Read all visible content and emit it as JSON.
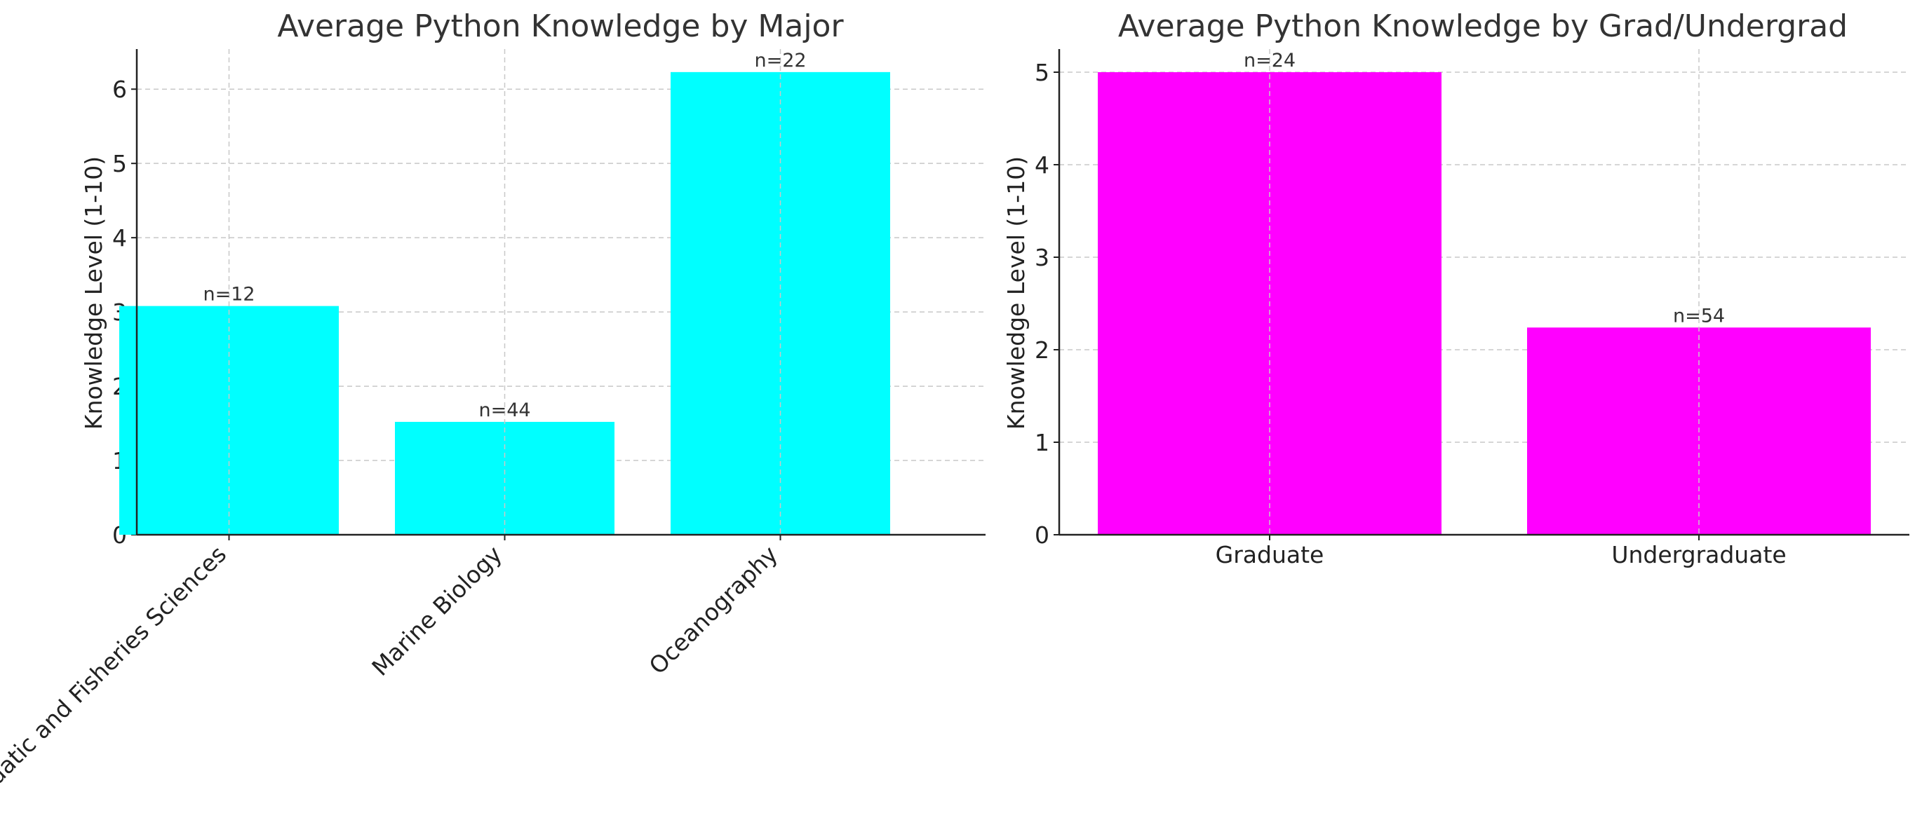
{
  "colors": {
    "major_bars": "#00ffff",
    "level_bars": "#ff00ff"
  },
  "chart_data": [
    {
      "type": "bar",
      "title": "Average Python Knowledge by Major",
      "xlabel": "",
      "ylabel": "Knowledge Level (1-10)",
      "categories": [
        "Aquatic and Fisheries Sciences",
        "Marine Biology",
        "Oceanography"
      ],
      "values": [
        3.08,
        1.52,
        6.23
      ],
      "counts": [
        "n=12",
        "n=44",
        "n=22"
      ],
      "yticks": [
        "0",
        "1",
        "2",
        "3",
        "4",
        "5",
        "6"
      ],
      "ylim": [
        0,
        6.54
      ],
      "grid": true,
      "xtick_rotation": 45
    },
    {
      "type": "bar",
      "title": "Average Python Knowledge by Grad/Undergrad",
      "xlabel": "",
      "ylabel": "Knowledge Level (1-10)",
      "categories": [
        "Graduate",
        "Undergraduate"
      ],
      "values": [
        5.0,
        2.24
      ],
      "counts": [
        "n=24",
        "n=54"
      ],
      "yticks": [
        "0",
        "1",
        "2",
        "3",
        "4",
        "5"
      ],
      "ylim": [
        0,
        5.25
      ],
      "grid": true,
      "xtick_rotation": 0
    }
  ]
}
